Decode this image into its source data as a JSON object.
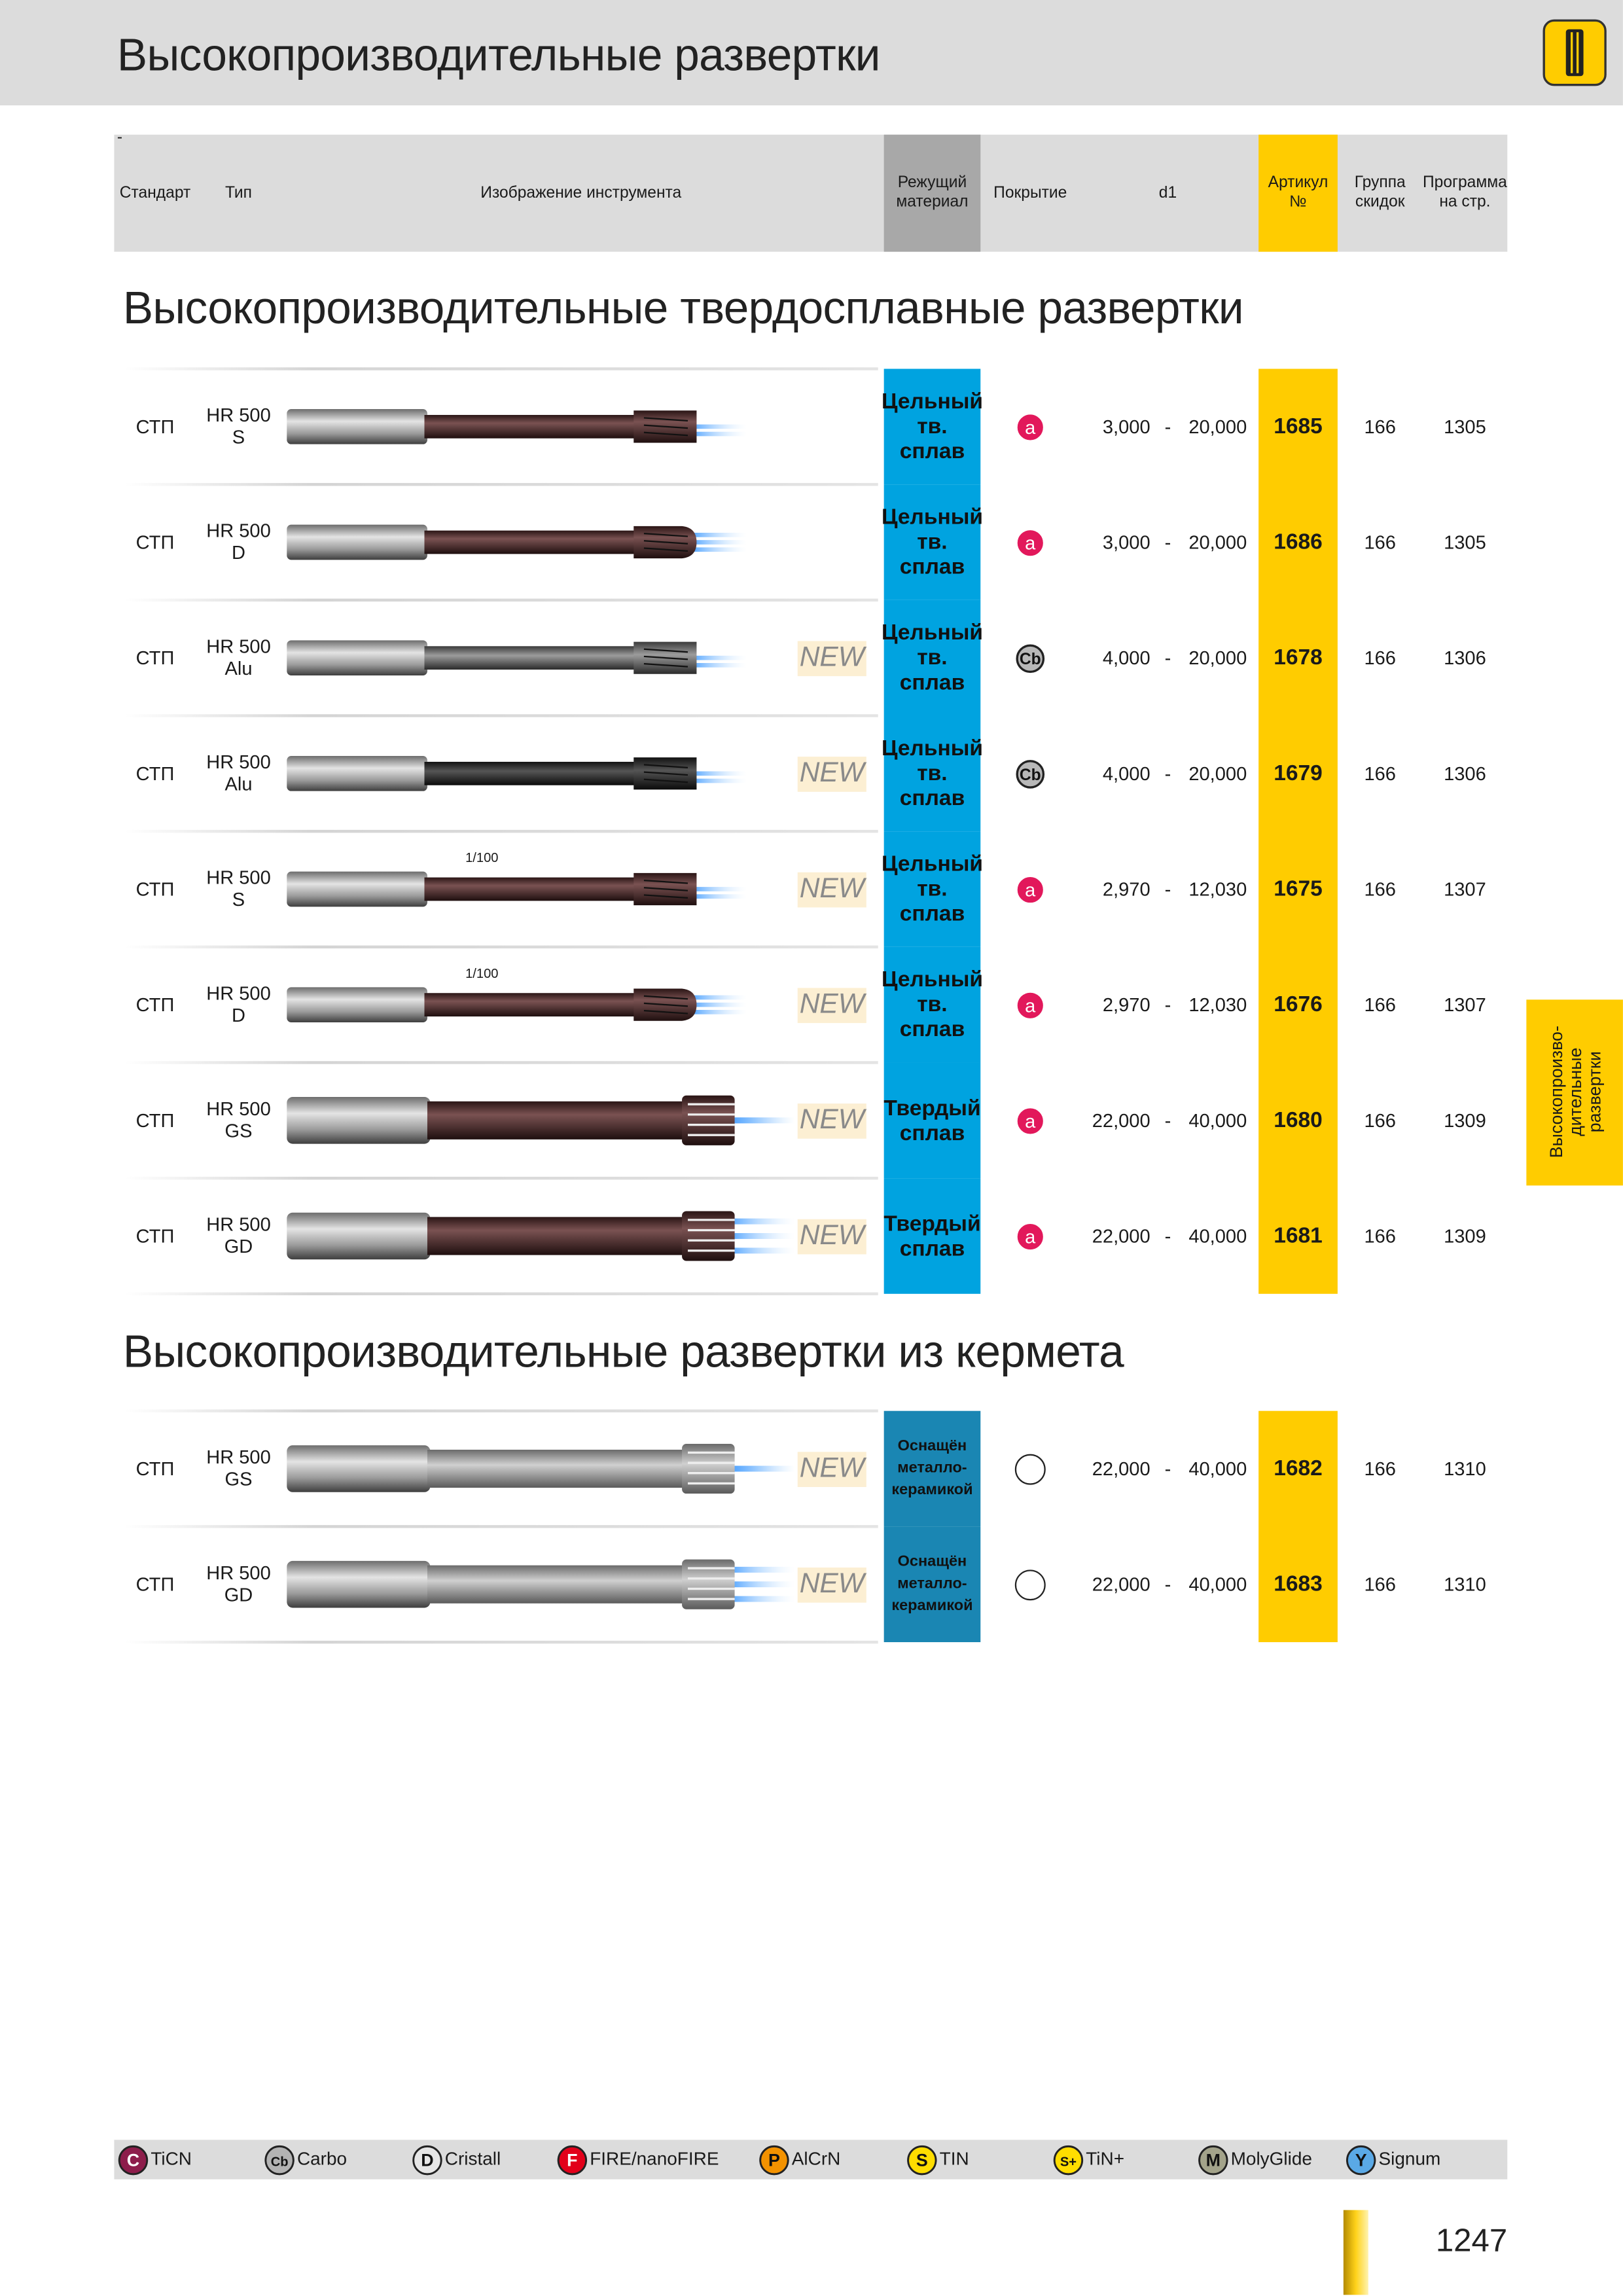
{
  "header": {
    "title": "Высокопроизводительные развертки"
  },
  "table": {
    "note": "-",
    "columns": [
      "Стандарт",
      "Тип",
      "Изображение инструмента",
      "Режущий материал",
      "Покрытие",
      "d1",
      "Артикул №",
      "Группа скидок",
      "Программа на стр."
    ]
  },
  "sections": [
    {
      "title": "Высокопроизводительные твердосплавные развертки",
      "rows": [
        {
          "standard": "СТП",
          "type": "HR 500",
          "variant": "S",
          "material": "Цельный тв. сплав",
          "coating": "a",
          "d1_min": "3,000",
          "d1_dash": "-",
          "d1_max": "20,000",
          "article": "1685",
          "discount_group": "166",
          "page": "1305"
        },
        {
          "standard": "СТП",
          "type": "HR 500",
          "variant": "D",
          "material": "Цельный тв. сплав",
          "coating": "a",
          "d1_min": "3,000",
          "d1_dash": "-",
          "d1_max": "20,000",
          "article": "1686",
          "discount_group": "166",
          "page": "1305"
        },
        {
          "standard": "СТП",
          "type": "HR 500",
          "variant": "Alu",
          "new": "NEW",
          "material": "Цельный тв. сплав",
          "coating": "Cb",
          "d1_min": "4,000",
          "d1_dash": "-",
          "d1_max": "20,000",
          "article": "1678",
          "discount_group": "166",
          "page": "1306"
        },
        {
          "standard": "СТП",
          "type": "HR 500",
          "variant": "Alu",
          "new": "NEW",
          "material": "Цельный тв. сплав",
          "coating": "Cb",
          "d1_min": "4,000",
          "d1_dash": "-",
          "d1_max": "20,000",
          "article": "1679",
          "discount_group": "166",
          "page": "1306"
        },
        {
          "standard": "СТП",
          "type": "HR 500",
          "variant": "S",
          "new": "NEW",
          "scale_mark": "1/100",
          "material": "Цельный тв. сплав",
          "coating": "a",
          "d1_min": "2,970",
          "d1_dash": "-",
          "d1_max": "12,030",
          "article": "1675",
          "discount_group": "166",
          "page": "1307"
        },
        {
          "standard": "СТП",
          "type": "HR 500",
          "variant": "D",
          "new": "NEW",
          "scale_mark": "1/100",
          "material": "Цельный тв. сплав",
          "coating": "a",
          "d1_min": "2,970",
          "d1_dash": "-",
          "d1_max": "12,030",
          "article": "1676",
          "discount_group": "166",
          "page": "1307"
        },
        {
          "standard": "СТП",
          "type": "HR 500",
          "variant": "GS",
          "new": "NEW",
          "material": "Твердый сплав",
          "coating": "a",
          "d1_min": "22,000",
          "d1_dash": "-",
          "d1_max": "40,000",
          "article": "1680",
          "discount_group": "166",
          "page": "1309"
        },
        {
          "standard": "СТП",
          "type": "HR 500",
          "variant": "GD",
          "new": "NEW",
          "material": "Твердый сплав",
          "coating": "a",
          "d1_min": "22,000",
          "d1_dash": "-",
          "d1_max": "40,000",
          "article": "1681",
          "discount_group": "166",
          "page": "1309"
        }
      ]
    },
    {
      "title": "Высокопроизводительные развертки из кермета",
      "rows": [
        {
          "standard": "СТП",
          "type": "HR 500",
          "variant": "GS",
          "new": "NEW",
          "material": "Оснащён металло-керамикой",
          "d1_min": "22,000",
          "d1_dash": "-",
          "d1_max": "40,000",
          "article": "1682",
          "discount_group": "166",
          "page": "1310"
        },
        {
          "standard": "СТП",
          "type": "HR 500",
          "variant": "GD",
          "new": "NEW",
          "material": "Оснащён металло-керамикой",
          "d1_min": "22,000",
          "d1_dash": "-",
          "d1_max": "40,000",
          "article": "1683",
          "discount_group": "166",
          "page": "1310"
        }
      ]
    }
  ],
  "legend": [
    {
      "symbol": "C",
      "label": "TiCN"
    },
    {
      "symbol": "Cb",
      "label": "Carbo"
    },
    {
      "symbol": "D",
      "label": "Cristall"
    },
    {
      "symbol": "F",
      "label": "FIRE/nanoFIRE"
    },
    {
      "symbol": "P",
      "label": "AlCrN"
    },
    {
      "symbol": "S",
      "label": "TIN"
    },
    {
      "symbol": "S+",
      "label": "TiN+"
    },
    {
      "symbol": "M",
      "label": "MolyGlide"
    },
    {
      "symbol": "Y",
      "label": "Signum"
    }
  ],
  "side_tab": "Высокопроизво-дительные развертки",
  "page_number": "1247"
}
